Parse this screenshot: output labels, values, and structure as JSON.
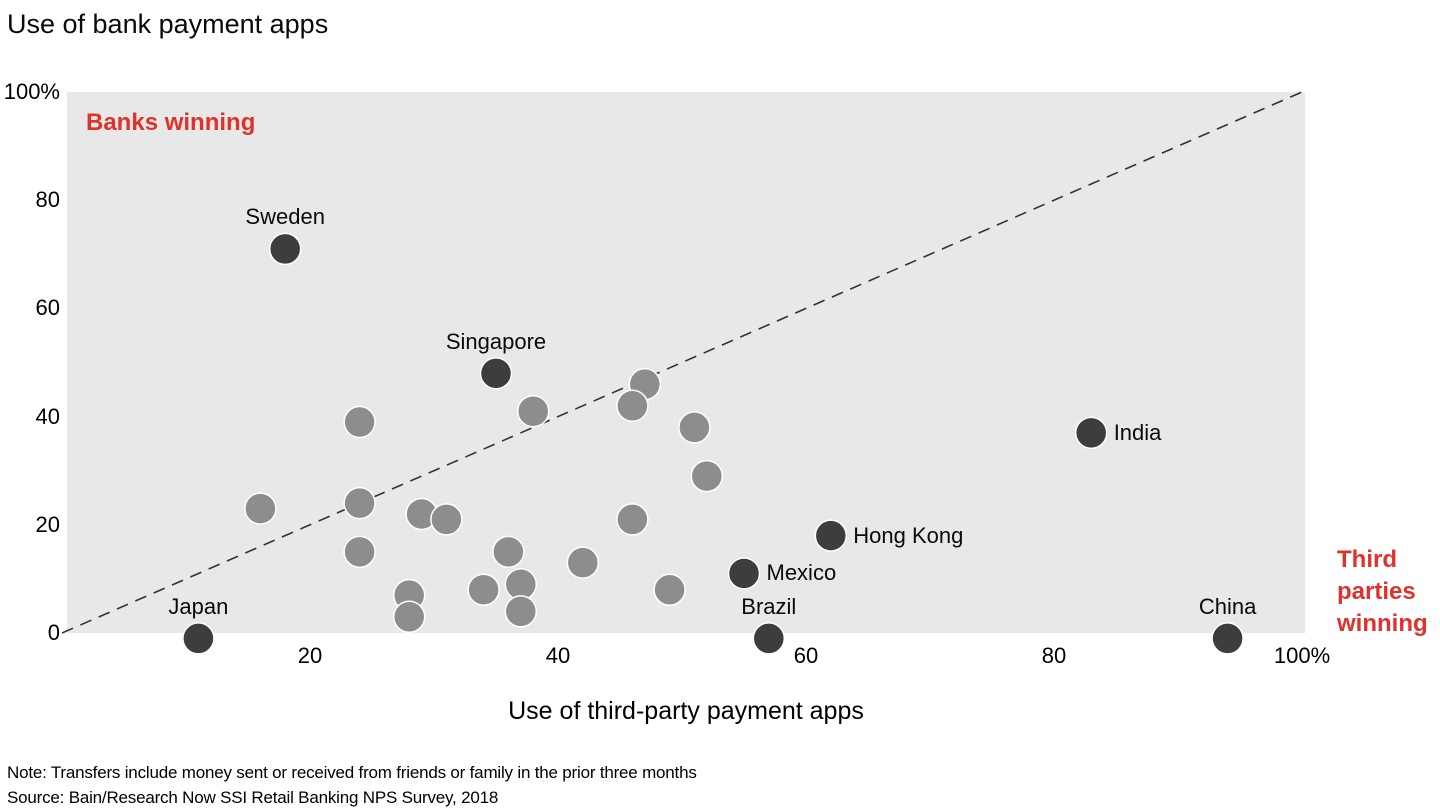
{
  "title": "Use of bank payment apps",
  "annotations": {
    "banks_winning": "Banks winning",
    "third_parties_winning": "Third parties winning"
  },
  "footnotes": {
    "note": "Note: Transfers include money sent or received from friends or family in the prior three months",
    "source": "Source: Bain/Research Now SSI Retail Banking NPS Survey, 2018"
  },
  "colors": {
    "plot_background": "#e8e8e8",
    "labeled_point": "#3d3d3d",
    "unlabeled_point": "#8d8d8d",
    "point_stroke": "#ffffff",
    "reference_line": "#333333",
    "annotation_red": "#e0322c",
    "text": "#0a0a0a"
  },
  "chart_data": {
    "type": "scatter",
    "title": "Use of bank payment apps",
    "xlabel": "Use of third-party payment apps",
    "ylabel": "Use of bank payment apps",
    "xlim": [
      0,
      100
    ],
    "ylim": [
      0,
      100
    ],
    "grid": false,
    "x_ticks": [
      {
        "value": 20,
        "label": "20"
      },
      {
        "value": 40,
        "label": "40"
      },
      {
        "value": 60,
        "label": "60"
      },
      {
        "value": 80,
        "label": "80"
      },
      {
        "value": 100,
        "label": "100%"
      }
    ],
    "y_ticks": [
      {
        "value": 0,
        "label": "0"
      },
      {
        "value": 20,
        "label": "20"
      },
      {
        "value": 40,
        "label": "40"
      },
      {
        "value": 60,
        "label": "60"
      },
      {
        "value": 80,
        "label": "80"
      },
      {
        "value": 100,
        "label": "100%"
      }
    ],
    "reference_line": {
      "style": "dashed",
      "from": {
        "x": 0,
        "y": 0
      },
      "to": {
        "x": 100,
        "y": 100
      },
      "meaning": "y = x"
    },
    "series": [
      {
        "name": "unlabeled-countries",
        "color": "#8d8d8d",
        "points": [
          {
            "x": 16,
            "y": 23
          },
          {
            "x": 24,
            "y": 39
          },
          {
            "x": 24,
            "y": 24
          },
          {
            "x": 24,
            "y": 15
          },
          {
            "x": 28,
            "y": 7
          },
          {
            "x": 28,
            "y": 3
          },
          {
            "x": 29,
            "y": 22
          },
          {
            "x": 31,
            "y": 21
          },
          {
            "x": 34,
            "y": 8
          },
          {
            "x": 36,
            "y": 15
          },
          {
            "x": 37,
            "y": 9
          },
          {
            "x": 37,
            "y": 4
          },
          {
            "x": 38,
            "y": 41
          },
          {
            "x": 42,
            "y": 13
          },
          {
            "x": 47,
            "y": 46
          },
          {
            "x": 46,
            "y": 42
          },
          {
            "x": 46,
            "y": 21
          },
          {
            "x": 49,
            "y": 8
          },
          {
            "x": 51,
            "y": 38
          },
          {
            "x": 52,
            "y": 29
          }
        ]
      },
      {
        "name": "labeled-countries",
        "color": "#3d3d3d",
        "points": [
          {
            "label": "Sweden",
            "x": 18,
            "y": 71,
            "label_position": "above"
          },
          {
            "label": "Singapore",
            "x": 35,
            "y": 48,
            "label_position": "above"
          },
          {
            "label": "Japan",
            "x": 11,
            "y": -1,
            "label_position": "above"
          },
          {
            "label": "India",
            "x": 83,
            "y": 37,
            "label_position": "right"
          },
          {
            "label": "Hong Kong",
            "x": 62,
            "y": 18,
            "label_position": "right"
          },
          {
            "label": "Mexico",
            "x": 55,
            "y": 11,
            "label_position": "right"
          },
          {
            "label": "Brazil",
            "x": 57,
            "y": -1,
            "label_position": "above"
          },
          {
            "label": "China",
            "x": 94,
            "y": -1,
            "label_position": "above"
          }
        ]
      }
    ]
  }
}
